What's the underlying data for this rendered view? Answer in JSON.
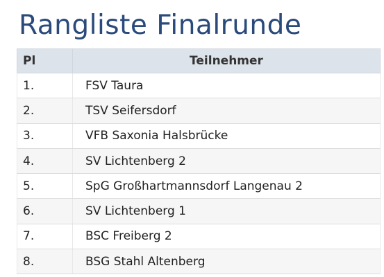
{
  "header": {
    "title": "Rangliste Finalrunde"
  },
  "table": {
    "columns": [
      "Pl",
      "Teilnehmer"
    ],
    "rows": [
      [
        "1.",
        "FSV Taura"
      ],
      [
        "2.",
        "TSV Seifersdorf"
      ],
      [
        "3.",
        "VFB Saxonia Halsbrücke"
      ],
      [
        "4.",
        "SV Lichtenberg 2"
      ],
      [
        "5.",
        "SpG Großhartmannsdorf Langenau 2"
      ],
      [
        "6.",
        "SV Lichtenberg 1"
      ],
      [
        "7.",
        "BSC Freiberg 2"
      ],
      [
        "8.",
        "BSG Stahl Altenberg"
      ]
    ]
  }
}
